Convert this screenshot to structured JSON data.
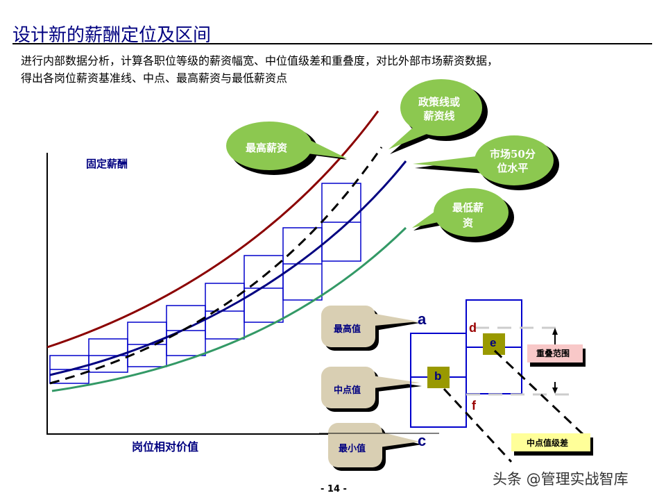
{
  "title": "设计新的薪酬定位及区间",
  "description": [
    "进行内部数据分析，计算各职位等级的薪资幅宽、中位值级差和重叠度，对比外部市场薪资数据，",
    "得出各岗位薪资基准线、中点、最高薪资与最低薪资点"
  ],
  "chart": {
    "y_label": "固定薪酬",
    "x_label": "岗位相对价值",
    "callouts": {
      "max_salary": "最高薪资",
      "policy_line": [
        "政策线或",
        "薪资线"
      ],
      "market_p50": [
        "市场50分",
        "位水平"
      ],
      "min_salary": [
        "最低薪",
        "资"
      ]
    },
    "colors": {
      "max": "#8B0000",
      "market": "#000080",
      "min": "#339966",
      "policy": "#000000",
      "bands": "#0000CC",
      "callout": "#8CC850"
    }
  },
  "detail": {
    "max_value": "最高值",
    "mid_value": "中点值",
    "min_value": "最小值",
    "points": {
      "a": "a",
      "b": "b",
      "c": "c",
      "d": "d",
      "e": "e",
      "f": "f"
    },
    "overlap": "重叠范围",
    "midpoint_diff": "中点值级差"
  },
  "page_number": "- 14 -",
  "watermark": "头条 @管理实战智库"
}
